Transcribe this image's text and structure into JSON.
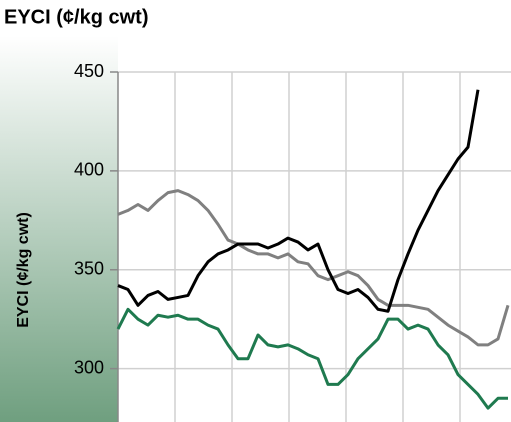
{
  "chart_data": {
    "type": "line",
    "title": "EYCI (¢/kg cwt)",
    "y_label": "EYCI (¢/kg cwt)",
    "ylim": [
      273,
      450
    ],
    "yticks": [
      300,
      350,
      400,
      450
    ],
    "grid": true,
    "series": [
      {
        "color": "#808080",
        "values": [
          378,
          380,
          383,
          380,
          385,
          389,
          390,
          388,
          385,
          380,
          373,
          365,
          363,
          360,
          358,
          358,
          356,
          358,
          354,
          353,
          347,
          345,
          347,
          349,
          347,
          342,
          335,
          332,
          332,
          332,
          331,
          330,
          326,
          322,
          319,
          316,
          312,
          312,
          315,
          332
        ]
      },
      {
        "color": "#1f7a4f",
        "values": [
          320,
          330,
          325,
          322,
          327,
          326,
          327,
          325,
          325,
          322,
          320,
          312,
          305,
          305,
          317,
          312,
          311,
          312,
          310,
          307,
          305,
          292,
          292,
          297,
          305,
          310,
          315,
          325,
          325,
          320,
          322,
          320,
          312,
          307,
          297,
          292,
          287,
          280,
          285,
          285
        ]
      },
      {
        "color": "#000000",
        "values": [
          342,
          340,
          332,
          337,
          339,
          335,
          336,
          337,
          347,
          354,
          358,
          360,
          363,
          363,
          363,
          361,
          363,
          366,
          364,
          360,
          363,
          350,
          340,
          338,
          340,
          336,
          330,
          329,
          345,
          358,
          370,
          380,
          390,
          398,
          406,
          412,
          441,
          null,
          null,
          null
        ]
      }
    ]
  }
}
